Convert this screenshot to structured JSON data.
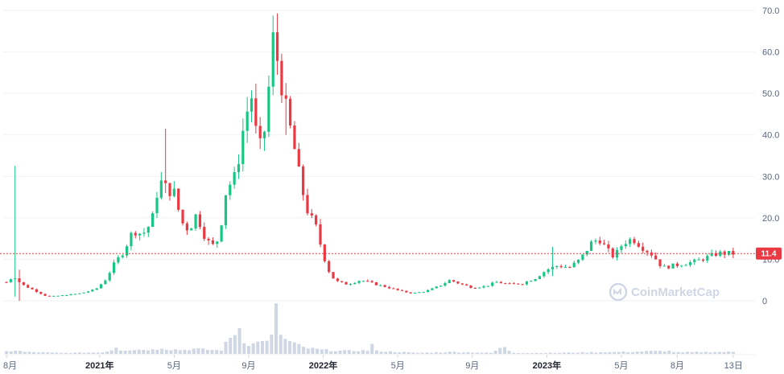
{
  "colors": {
    "up": "#16c784",
    "down": "#ea3943",
    "grid": "#eff2f5",
    "volume": "#cfd6e4",
    "axis_text": "#58667e",
    "price_line": "#ea3943"
  },
  "watermark": {
    "text": "CoinMarketCap",
    "icon": "coinmarketcap-logo-icon"
  },
  "chart_data": {
    "type": "candlestick",
    "y_ticks": [
      "70.0",
      "60.0",
      "50.0",
      "40.0",
      "30.0",
      "20.0",
      "10.0",
      "0"
    ],
    "y_tick_values": [
      70,
      60,
      50,
      40,
      30,
      20,
      10,
      0
    ],
    "ylim": [
      0,
      70
    ],
    "x_ticks": [
      {
        "label": "8月",
        "t": 0,
        "bold": false
      },
      {
        "label": "2021年",
        "t": 5,
        "bold": true
      },
      {
        "label": "5月",
        "t": 9,
        "bold": false
      },
      {
        "label": "9月",
        "t": 13,
        "bold": false
      },
      {
        "label": "2022年",
        "t": 17,
        "bold": true
      },
      {
        "label": "5月",
        "t": 21,
        "bold": false
      },
      {
        "label": "9月",
        "t": 25,
        "bold": false
      },
      {
        "label": "2023年",
        "t": 29,
        "bold": true
      },
      {
        "label": "5月",
        "t": 33,
        "bold": false
      },
      {
        "label": "8月",
        "t": 36,
        "bold": false
      },
      {
        "label": "13日",
        "t": 39,
        "bold": false
      }
    ],
    "current_price": {
      "label": "11.4",
      "value": 11.4
    },
    "price_keypoints": [
      [
        0,
        4.5
      ],
      [
        0.4,
        6
      ],
      [
        0.8,
        4
      ],
      [
        1.5,
        2.5
      ],
      [
        2.2,
        1.0
      ],
      [
        3.0,
        1.3
      ],
      [
        4.0,
        1.8
      ],
      [
        4.8,
        2.8
      ],
      [
        5.3,
        5
      ],
      [
        5.8,
        9
      ],
      [
        6.3,
        12
      ],
      [
        6.8,
        17
      ],
      [
        7.3,
        16
      ],
      [
        7.8,
        19
      ],
      [
        8.2,
        29
      ],
      [
        8.6,
        27
      ],
      [
        9.0,
        26
      ],
      [
        9.4,
        19
      ],
      [
        9.8,
        17
      ],
      [
        10.2,
        21
      ],
      [
        10.6,
        16
      ],
      [
        11.0,
        13
      ],
      [
        11.4,
        15
      ],
      [
        11.8,
        27
      ],
      [
        12.3,
        30
      ],
      [
        12.8,
        44
      ],
      [
        13.2,
        50
      ],
      [
        13.5,
        35
      ],
      [
        13.9,
        42
      ],
      [
        14.3,
        63
      ],
      [
        14.6,
        57
      ],
      [
        15.0,
        46
      ],
      [
        15.4,
        38
      ],
      [
        15.8,
        28
      ],
      [
        16.2,
        21
      ],
      [
        16.6,
        18
      ],
      [
        17.0,
        11
      ],
      [
        17.4,
        6
      ],
      [
        17.8,
        4.5
      ],
      [
        18.3,
        4.0
      ],
      [
        19.0,
        5
      ],
      [
        19.8,
        4
      ],
      [
        20.5,
        3.2
      ],
      [
        21.2,
        2.3
      ],
      [
        21.8,
        1.8
      ],
      [
        22.5,
        2.3
      ],
      [
        23.2,
        3.5
      ],
      [
        23.8,
        5
      ],
      [
        24.4,
        4
      ],
      [
        25.0,
        3.2
      ],
      [
        25.7,
        3.5
      ],
      [
        26.3,
        4.5
      ],
      [
        27.0,
        4.0
      ],
      [
        27.7,
        4.2
      ],
      [
        28.4,
        5.5
      ],
      [
        29.0,
        7.5
      ],
      [
        29.6,
        8.5
      ],
      [
        30.2,
        8
      ],
      [
        30.8,
        10
      ],
      [
        31.4,
        14
      ],
      [
        31.8,
        15
      ],
      [
        32.2,
        12.5
      ],
      [
        32.6,
        10.5
      ],
      [
        33.1,
        14
      ],
      [
        33.6,
        15
      ],
      [
        34.1,
        13
      ],
      [
        34.7,
        11
      ],
      [
        35.2,
        8
      ],
      [
        35.8,
        8.5
      ],
      [
        36.4,
        9
      ],
      [
        37.0,
        9.5
      ],
      [
        37.6,
        10.5
      ],
      [
        38.2,
        11.5
      ],
      [
        38.8,
        11.4
      ]
    ],
    "spikes": [
      {
        "t": 0.35,
        "high": 32.5,
        "low": 1
      },
      {
        "t": 0.7,
        "high": 7.5,
        "low": 0
      },
      {
        "t": 8.5,
        "high": 41.5,
        "low": 26
      },
      {
        "t": 14.4,
        "high": 67.5,
        "low": 55
      },
      {
        "t": 15.1,
        "high": 52.5,
        "low": 40
      },
      {
        "t": 29.4,
        "high": 13,
        "low": 6
      }
    ],
    "volume_keypoints": [
      [
        0,
        0.05
      ],
      [
        0.5,
        0.07
      ],
      [
        1.0,
        0.04
      ],
      [
        3.0,
        0.02
      ],
      [
        5.0,
        0.03
      ],
      [
        5.6,
        0.06
      ],
      [
        5.8,
        0.17
      ],
      [
        6.1,
        0.08
      ],
      [
        7.5,
        0.09
      ],
      [
        8.0,
        0.08
      ],
      [
        8.3,
        0.14
      ],
      [
        8.6,
        0.1
      ],
      [
        9.5,
        0.08
      ],
      [
        10.0,
        0.1
      ],
      [
        11.5,
        0.07
      ],
      [
        12.4,
        0.5
      ],
      [
        12.6,
        0.54
      ],
      [
        12.8,
        0.2
      ],
      [
        13.4,
        0.2
      ],
      [
        13.8,
        0.33
      ],
      [
        14.0,
        0.22
      ],
      [
        14.2,
        0.25
      ],
      [
        14.4,
        1.0
      ],
      [
        14.6,
        0.58
      ],
      [
        14.8,
        0.3
      ],
      [
        15.2,
        0.25
      ],
      [
        15.6,
        0.18
      ],
      [
        16.0,
        0.12
      ],
      [
        17.0,
        0.08
      ],
      [
        18.0,
        0.06
      ],
      [
        19.4,
        0.07
      ],
      [
        19.6,
        0.2
      ],
      [
        19.8,
        0.06
      ],
      [
        21.0,
        0.04
      ],
      [
        22.0,
        0.02
      ],
      [
        24.0,
        0.04
      ],
      [
        26.0,
        0.02
      ],
      [
        26.8,
        0.16
      ],
      [
        27.0,
        0.06
      ],
      [
        27.3,
        0.02
      ],
      [
        29.0,
        0.02
      ],
      [
        31.0,
        0.03
      ],
      [
        33.0,
        0.04
      ],
      [
        35.5,
        0.06
      ],
      [
        36.0,
        0.03
      ],
      [
        38.0,
        0.04
      ],
      [
        39.0,
        0.04
      ]
    ]
  }
}
